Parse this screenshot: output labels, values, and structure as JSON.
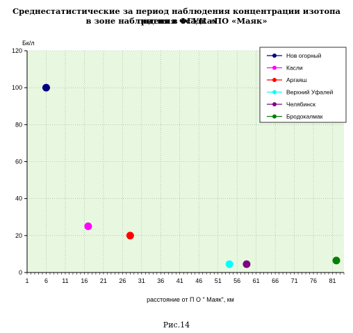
{
  "title_line_1": "Среднестатистические за период наблюдения концентрации изотопа трития в осадках",
  "title_line_2": "в зоне наблюдения ФГУП «ПО «Маяк»",
  "figure_caption": "Рис.14",
  "chart_data": {
    "type": "scatter",
    "title": "Среднестатистические за период наблюдения концентрации изотопа трития в осадках в зоне наблюдения ФГУП «ПО «Маяк»",
    "xlabel": "расстояние от П О \" Маяк\", км",
    "ylabel": "Бк/л",
    "xlim": [
      1,
      84
    ],
    "ylim": [
      0,
      120
    ],
    "x_ticks": [
      1,
      6,
      11,
      16,
      21,
      26,
      31,
      36,
      41,
      46,
      51,
      56,
      61,
      66,
      71,
      76,
      81
    ],
    "y_ticks": [
      0,
      20,
      40,
      60,
      80,
      100,
      120
    ],
    "grid": "dotted vertical and horizontal",
    "plot_background": "#e8f8e0",
    "legend_position": "top-right",
    "series": [
      {
        "name": "Нов огорный",
        "color": "#000080",
        "x": 6,
        "y": 100
      },
      {
        "name": "Касли",
        "color": "#ff00ff",
        "x": 17,
        "y": 25
      },
      {
        "name": "Аргаяш",
        "color": "#ff0000",
        "x": 28,
        "y": 20
      },
      {
        "name": "Верхний Уфалей",
        "color": "#00ffff",
        "x": 54,
        "y": 4.5
      },
      {
        "name": "Челябинск",
        "color": "#800080",
        "x": 58.5,
        "y": 4.5
      },
      {
        "name": "Бродокалмак",
        "color": "#008000",
        "x": 82,
        "y": 6.5
      }
    ]
  }
}
